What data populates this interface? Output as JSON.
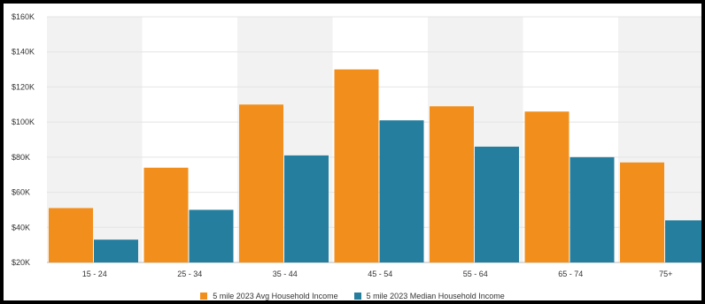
{
  "chart_data": {
    "type": "bar",
    "categories": [
      "15 - 24",
      "25 - 34",
      "35 - 44",
      "45 - 54",
      "55 - 64",
      "65 - 74",
      "75+"
    ],
    "series": [
      {
        "name": "5 mile 2023 Avg Household Income",
        "color": "#f28f1c",
        "values": [
          51000,
          74000,
          110000,
          130000,
          109000,
          106000,
          77000
        ]
      },
      {
        "name": "5 mile 2023 Median Household Income",
        "color": "#267e9e",
        "values": [
          33000,
          50000,
          81000,
          101000,
          86000,
          80000,
          44000
        ]
      }
    ],
    "ylim": [
      20000,
      160000
    ],
    "y_ticks": [
      {
        "value": 20000,
        "label": "$20K"
      },
      {
        "value": 40000,
        "label": "$40K"
      },
      {
        "value": 60000,
        "label": "$60K"
      },
      {
        "value": 80000,
        "label": "$80K"
      },
      {
        "value": 100000,
        "label": "$100K"
      },
      {
        "value": 120000,
        "label": "$120K"
      },
      {
        "value": 140000,
        "label": "$140K"
      },
      {
        "value": 160000,
        "label": "$160K"
      }
    ],
    "grid": true,
    "legend_position": "bottom-center",
    "band_colors": [
      "#f2f2f2",
      "#ffffff"
    ]
  }
}
